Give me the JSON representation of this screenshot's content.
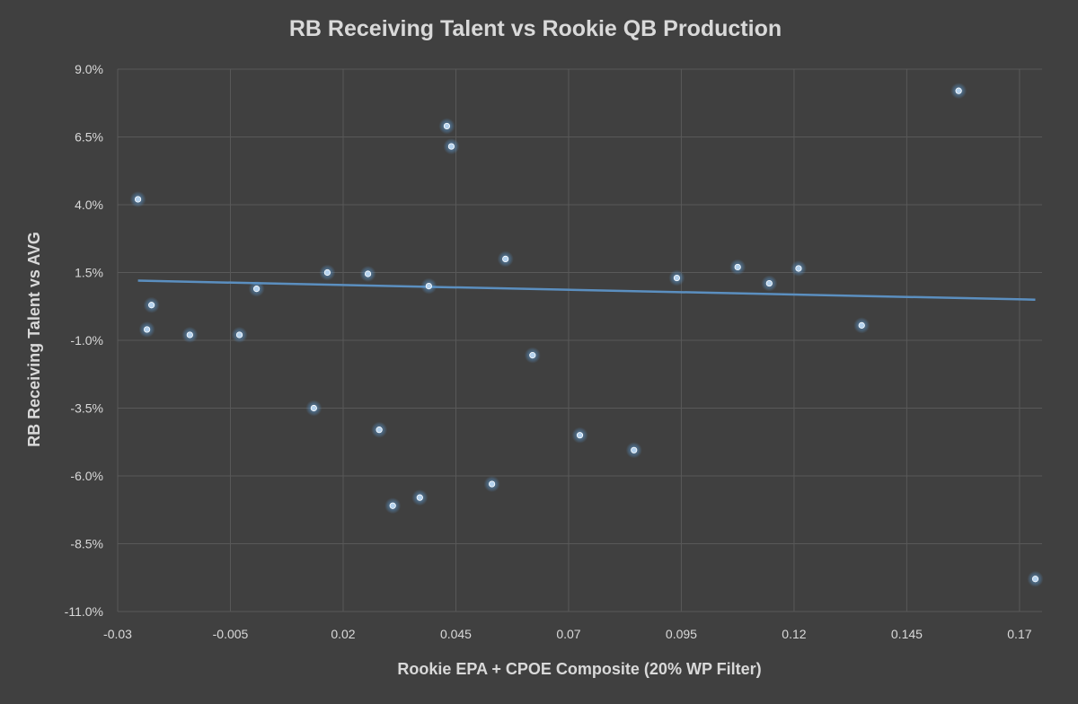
{
  "chart_data": {
    "type": "scatter",
    "title": "RB Receiving Talent vs Rookie QB Production",
    "xlabel": "Rookie EPA + CPOE Composite (20% WP Filter)",
    "ylabel": "RB Receiving Talent vs AVG",
    "xlim": [
      -0.03,
      0.175
    ],
    "ylim": [
      -11.0,
      9.0
    ],
    "x_ticks": [
      -0.03,
      -0.005,
      0.02,
      0.045,
      0.07,
      0.095,
      0.12,
      0.145,
      0.17
    ],
    "x_tick_labels": [
      "-0.03",
      "-0.005",
      "0.02",
      "0.045",
      "0.07",
      "0.095",
      "0.12",
      "0.145",
      "0.17"
    ],
    "y_ticks": [
      9.0,
      6.5,
      4.0,
      1.5,
      -1.0,
      -3.5,
      -6.0,
      -8.5,
      -11.0
    ],
    "y_tick_labels": [
      "9.0%",
      "6.5%",
      "4.0%",
      "1.5%",
      "-1.0%",
      "-3.5%",
      "-6.0%",
      "-8.5%",
      "-11.0%"
    ],
    "grid": true,
    "legend": "none",
    "points": [
      {
        "x": -0.0255,
        "y": 4.2
      },
      {
        "x": -0.0235,
        "y": -0.6
      },
      {
        "x": -0.0225,
        "y": 0.3
      },
      {
        "x": -0.014,
        "y": -0.8
      },
      {
        "x": -0.003,
        "y": -0.8
      },
      {
        "x": 0.0008,
        "y": 0.9
      },
      {
        "x": 0.0135,
        "y": -3.5
      },
      {
        "x": 0.0165,
        "y": 1.5
      },
      {
        "x": 0.0255,
        "y": 1.45
      },
      {
        "x": 0.028,
        "y": -4.3
      },
      {
        "x": 0.031,
        "y": -7.1
      },
      {
        "x": 0.037,
        "y": -6.8
      },
      {
        "x": 0.039,
        "y": 1.0
      },
      {
        "x": 0.043,
        "y": 6.9
      },
      {
        "x": 0.044,
        "y": 6.15
      },
      {
        "x": 0.053,
        "y": -6.3
      },
      {
        "x": 0.056,
        "y": 2.0
      },
      {
        "x": 0.062,
        "y": -1.55
      },
      {
        "x": 0.0725,
        "y": -4.5
      },
      {
        "x": 0.0845,
        "y": -5.05
      },
      {
        "x": 0.094,
        "y": 1.3
      },
      {
        "x": 0.1075,
        "y": 1.7
      },
      {
        "x": 0.1145,
        "y": 1.1
      },
      {
        "x": 0.121,
        "y": 1.65
      },
      {
        "x": 0.135,
        "y": -0.45
      },
      {
        "x": 0.1565,
        "y": 8.2
      },
      {
        "x": 0.1735,
        "y": -9.8
      }
    ],
    "trendline": {
      "x": [
        -0.0255,
        0.1735
      ],
      "y": [
        1.2,
        0.5
      ]
    },
    "colors": {
      "background": "#404040",
      "grid": "#595959",
      "text": "#d9d9d9",
      "point": "#b4d2ee",
      "point_glow": "#5b9bd5",
      "trendline": "#5b8fc0"
    }
  }
}
